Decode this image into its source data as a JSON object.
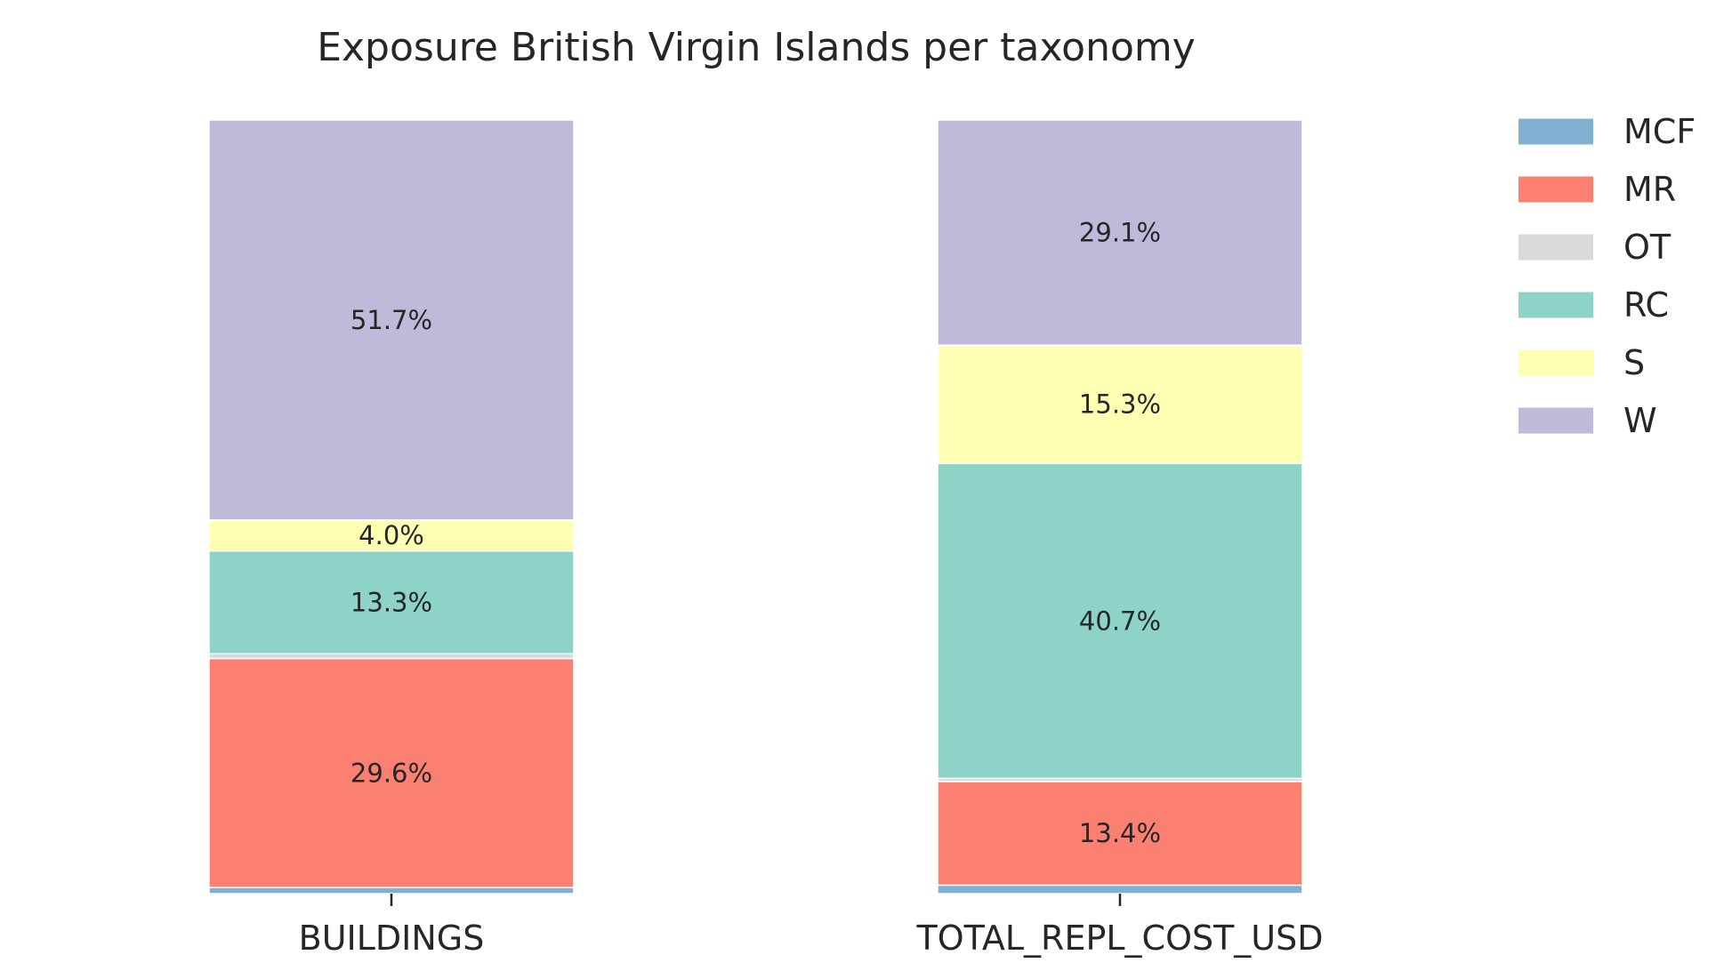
{
  "chart_data": {
    "type": "bar",
    "stacked": true,
    "normalized": true,
    "title": "Exposure British Virgin Islands per taxonomy",
    "xlabel": "",
    "ylabel": "",
    "ylim": [
      0,
      100
    ],
    "grid": false,
    "legend_position": "top-right outside",
    "categories": [
      "BUILDINGS",
      "TOTAL_REPL_COST_USD"
    ],
    "series": [
      {
        "name": "MCF",
        "color": "#80b1d3",
        "values": [
          0.8,
          1.1
        ],
        "labels": [
          "",
          ""
        ]
      },
      {
        "name": "MR",
        "color": "#fb8072",
        "values": [
          29.6,
          13.4
        ],
        "labels": [
          "29.6%",
          "13.4%"
        ]
      },
      {
        "name": "OT",
        "color": "#d9d9d9",
        "values": [
          0.6,
          0.4
        ],
        "labels": [
          "",
          ""
        ]
      },
      {
        "name": "RC",
        "color": "#8dd3c7",
        "values": [
          13.3,
          40.7
        ],
        "labels": [
          "13.3%",
          "40.7%"
        ]
      },
      {
        "name": "S",
        "color": "#ffffb3",
        "values": [
          4.0,
          15.3
        ],
        "labels": [
          "4.0%",
          "15.3%"
        ]
      },
      {
        "name": "W",
        "color": "#bebada",
        "values": [
          51.7,
          29.1
        ],
        "labels": [
          "51.7%",
          "29.1%"
        ]
      }
    ]
  }
}
